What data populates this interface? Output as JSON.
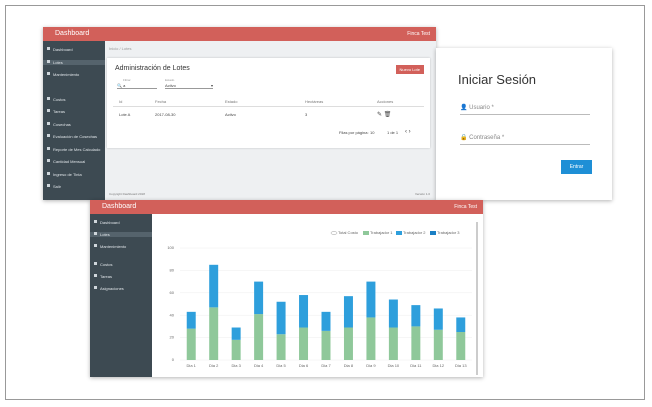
{
  "window1": {
    "header": {
      "title": "Dashboard",
      "user": "Finca Test"
    },
    "sidebar": [
      "Dashboard",
      "Lotes",
      "Mantenimiento",
      "Costos",
      "Tareas",
      "Cosechas",
      "Evaluación de Cosechas",
      "Reporte de Mes Calculado",
      "Cantidad Mensual",
      "Ingreso de Tinta",
      "Salir"
    ],
    "breadcrumb": "Inicio / Lotes",
    "panel": {
      "title": "Administración de Lotes",
      "button": "Nuevo Lote",
      "search_label": "Filtrar",
      "search_value": "a",
      "status_label": "Estado",
      "status_value": "Activo"
    },
    "table": {
      "headers": [
        "Id",
        "Fecha",
        "Estado",
        "Hectáreas",
        "Acciones"
      ],
      "rows": [
        [
          "Lote A",
          "2017-08-30",
          "Activo",
          "3"
        ]
      ]
    },
    "pagination": {
      "rows_label": "Filas por página:",
      "rows_value": "10",
      "range": "1 de 1"
    },
    "footer": {
      "left": "Copyright Dashboard 2018",
      "right": "Versión 1.0"
    }
  },
  "login": {
    "title": "Iniciar Sesión",
    "username": "Usuario *",
    "password": "Contraseña *",
    "button": "Entrar"
  },
  "window2": {
    "header": {
      "title": "Dashboard",
      "user": "Finca Test"
    },
    "sidebar": [
      "Dashboard",
      "Lotes",
      "Mantenimiento",
      "Costos",
      "Tareas",
      "Asignaciones"
    ]
  },
  "chart_data": {
    "type": "bar",
    "stacked": true,
    "categories": [
      "Dia 1",
      "Dia 2",
      "Dia 3",
      "Dia 4",
      "Dia 5",
      "Dia 6",
      "Dia 7",
      "Dia 8",
      "Dia 9",
      "Dia 10",
      "Dia 11",
      "Dia 12",
      "Dia 13"
    ],
    "legend": [
      "Total Costo",
      "Trabajador 1",
      "Trabajador 2",
      "Trabajador 3"
    ],
    "series": [
      {
        "name": "Trabajador 1",
        "color": "#8fc89a",
        "values": [
          28,
          47,
          18,
          41,
          23,
          29,
          26,
          29,
          38,
          29,
          30,
          27,
          25
        ]
      },
      {
        "name": "Trabajador 2",
        "color": "#2e9fdc",
        "values": [
          15,
          38,
          11,
          29,
          29,
          29,
          17,
          28,
          32,
          25,
          19,
          19,
          13
        ]
      }
    ],
    "ylim": [
      0,
      100
    ],
    "yticks": [
      0,
      20,
      40,
      60,
      80,
      100
    ],
    "grid": true
  }
}
